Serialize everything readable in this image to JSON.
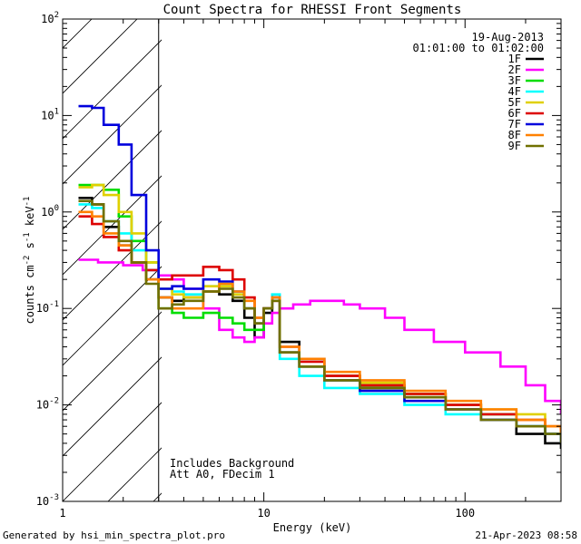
{
  "chart_data": {
    "type": "line",
    "title": "Count Spectra for RHESSI Front Segments",
    "xlabel": "Energy (keV)",
    "ylabel_parts": [
      "counts cm",
      "-2",
      " s",
      "-1",
      " keV",
      "-1"
    ],
    "x_scale": "log",
    "y_scale": "log",
    "xlim": [
      1,
      300
    ],
    "ylim": [
      0.001,
      100
    ],
    "x_ticks": [
      {
        "value": 1,
        "label": "1"
      },
      {
        "value": 10,
        "label": "10"
      },
      {
        "value": 100,
        "label": "100"
      }
    ],
    "y_ticks": [
      {
        "value": 0.001,
        "base": "10",
        "exp": "-3"
      },
      {
        "value": 0.01,
        "base": "10",
        "exp": "-2"
      },
      {
        "value": 0.1,
        "base": "10",
        "exp": "-1"
      },
      {
        "value": 1,
        "base": "10",
        "exp": "0"
      },
      {
        "value": 10,
        "base": "10",
        "exp": "1"
      },
      {
        "value": 100,
        "base": "10",
        "exp": "2"
      }
    ],
    "hatched_region_kev": [
      1,
      3
    ],
    "date": "19-Aug-2013",
    "time_range": "01:01:00 to 01:02:00",
    "annotations": [
      "Includes Background",
      "Att A0, FDecim 1"
    ],
    "series": [
      {
        "name": "1F",
        "color": "#000000",
        "x": [
          1.2,
          1.4,
          1.6,
          1.9,
          2.2,
          2.6,
          3.0,
          3.5,
          4.0,
          5.0,
          6.0,
          7.0,
          8.0,
          9.0,
          10.0,
          11.0,
          12.0,
          15.0,
          20.0,
          30.0,
          50.0,
          80.0,
          120.0,
          180.0,
          250.0,
          300.0
        ],
        "y": [
          1.4,
          1.2,
          0.7,
          0.45,
          0.3,
          0.2,
          0.13,
          0.12,
          0.13,
          0.15,
          0.14,
          0.12,
          0.08,
          0.05,
          0.09,
          0.13,
          0.045,
          0.03,
          0.02,
          0.015,
          0.012,
          0.009,
          0.007,
          0.005,
          0.004,
          0.0035
        ]
      },
      {
        "name": "2F",
        "color": "#ff00ff",
        "x": [
          1.2,
          1.5,
          2.0,
          2.5,
          3.0,
          3.5,
          4.0,
          5.0,
          6.0,
          7.0,
          8.0,
          9.0,
          10.0,
          11.0,
          12.0,
          14.0,
          17.0,
          20.0,
          25.0,
          30.0,
          40.0,
          50.0,
          70.0,
          100.0,
          150.0,
          200.0,
          250.0,
          300.0
        ],
        "y": [
          0.32,
          0.3,
          0.28,
          0.25,
          0.22,
          0.2,
          0.16,
          0.1,
          0.06,
          0.05,
          0.045,
          0.05,
          0.07,
          0.09,
          0.1,
          0.11,
          0.12,
          0.12,
          0.11,
          0.1,
          0.08,
          0.06,
          0.045,
          0.035,
          0.025,
          0.016,
          0.011,
          0.008
        ]
      },
      {
        "name": "3F",
        "color": "#00dd00",
        "x": [
          1.2,
          1.4,
          1.6,
          1.9,
          2.2,
          2.6,
          3.0,
          3.5,
          4.0,
          5.0,
          6.0,
          7.0,
          8.0,
          9.0,
          10.0,
          11.0,
          12.0,
          15.0,
          20.0,
          30.0,
          50.0,
          80.0,
          120.0,
          180.0,
          250.0,
          300.0
        ],
        "y": [
          1.9,
          1.9,
          1.7,
          0.9,
          0.5,
          0.3,
          0.1,
          0.09,
          0.08,
          0.09,
          0.08,
          0.07,
          0.06,
          0.06,
          0.1,
          0.13,
          0.035,
          0.025,
          0.018,
          0.016,
          0.013,
          0.01,
          0.008,
          0.006,
          0.005,
          0.004
        ]
      },
      {
        "name": "4F",
        "color": "#00ffff",
        "x": [
          1.2,
          1.4,
          1.6,
          1.9,
          2.2,
          2.6,
          3.0,
          3.5,
          4.0,
          5.0,
          6.0,
          7.0,
          8.0,
          9.0,
          10.0,
          11.0,
          12.0,
          15.0,
          20.0,
          30.0,
          50.0,
          80.0,
          120.0,
          180.0,
          250.0,
          300.0
        ],
        "y": [
          1.2,
          1.1,
          0.8,
          0.6,
          0.4,
          0.25,
          0.16,
          0.15,
          0.14,
          0.17,
          0.18,
          0.14,
          0.1,
          0.07,
          0.1,
          0.14,
          0.03,
          0.02,
          0.015,
          0.013,
          0.01,
          0.008,
          0.007,
          0.006,
          0.005,
          0.004
        ]
      },
      {
        "name": "5F",
        "color": "#e0d000",
        "x": [
          1.2,
          1.4,
          1.6,
          1.9,
          2.2,
          2.6,
          3.0,
          3.5,
          4.0,
          5.0,
          6.0,
          7.0,
          8.0,
          9.0,
          10.0,
          11.0,
          12.0,
          15.0,
          20.0,
          30.0,
          50.0,
          80.0,
          120.0,
          180.0,
          250.0,
          300.0
        ],
        "y": [
          1.8,
          1.9,
          1.5,
          1.0,
          0.6,
          0.3,
          0.16,
          0.14,
          0.13,
          0.17,
          0.17,
          0.14,
          0.1,
          0.07,
          0.1,
          0.13,
          0.035,
          0.025,
          0.02,
          0.017,
          0.013,
          0.01,
          0.009,
          0.008,
          0.006,
          0.005
        ]
      },
      {
        "name": "6F",
        "color": "#dd0000",
        "x": [
          1.2,
          1.4,
          1.6,
          1.9,
          2.2,
          2.6,
          3.0,
          3.5,
          4.0,
          5.0,
          6.0,
          7.0,
          8.0,
          9.0,
          10.0,
          11.0,
          12.0,
          15.0,
          20.0,
          30.0,
          50.0,
          80.0,
          120.0,
          180.0,
          250.0,
          300.0
        ],
        "y": [
          0.9,
          0.75,
          0.55,
          0.4,
          0.3,
          0.25,
          0.2,
          0.22,
          0.22,
          0.27,
          0.25,
          0.2,
          0.13,
          0.08,
          0.1,
          0.12,
          0.04,
          0.028,
          0.02,
          0.016,
          0.013,
          0.01,
          0.008,
          0.007,
          0.006,
          0.005
        ]
      },
      {
        "name": "7F",
        "color": "#0000dd",
        "x": [
          1.2,
          1.4,
          1.6,
          1.9,
          2.2,
          2.6,
          3.0,
          3.5,
          4.0,
          5.0,
          6.0,
          7.0,
          8.0,
          9.0,
          10.0,
          11.0,
          12.0,
          15.0,
          20.0,
          30.0,
          50.0,
          80.0,
          120.0,
          180.0,
          250.0,
          300.0
        ],
        "y": [
          12.5,
          12.0,
          8.0,
          5.0,
          1.5,
          0.4,
          0.16,
          0.17,
          0.16,
          0.2,
          0.19,
          0.15,
          0.1,
          0.07,
          0.1,
          0.13,
          0.035,
          0.025,
          0.018,
          0.014,
          0.011,
          0.009,
          0.007,
          0.006,
          0.005,
          0.004
        ]
      },
      {
        "name": "8F",
        "color": "#ff8000",
        "x": [
          1.2,
          1.4,
          1.6,
          1.9,
          2.2,
          2.6,
          3.0,
          3.5,
          4.0,
          5.0,
          6.0,
          7.0,
          8.0,
          9.0,
          10.0,
          11.0,
          12.0,
          15.0,
          20.0,
          30.0,
          50.0,
          80.0,
          120.0,
          180.0,
          250.0,
          300.0
        ],
        "y": [
          1.0,
          0.9,
          0.6,
          0.45,
          0.3,
          0.2,
          0.13,
          0.1,
          0.1,
          0.15,
          0.18,
          0.15,
          0.12,
          0.08,
          0.1,
          0.13,
          0.04,
          0.03,
          0.022,
          0.018,
          0.014,
          0.011,
          0.009,
          0.007,
          0.006,
          0.005
        ]
      },
      {
        "name": "9F",
        "color": "#707000",
        "x": [
          1.2,
          1.4,
          1.6,
          1.9,
          2.2,
          2.6,
          3.0,
          3.5,
          4.0,
          5.0,
          6.0,
          7.0,
          8.0,
          9.0,
          10.0,
          11.0,
          12.0,
          15.0,
          20.0,
          30.0,
          50.0,
          80.0,
          120.0,
          180.0,
          250.0,
          300.0
        ],
        "y": [
          1.3,
          1.2,
          0.8,
          0.5,
          0.3,
          0.18,
          0.1,
          0.11,
          0.12,
          0.15,
          0.16,
          0.13,
          0.1,
          0.07,
          0.1,
          0.12,
          0.035,
          0.025,
          0.018,
          0.015,
          0.012,
          0.009,
          0.007,
          0.006,
          0.005,
          0.004
        ]
      }
    ]
  },
  "footer": {
    "generated_by": "Generated by hsi_min_spectra_plot.pro",
    "timestamp": "21-Apr-2023 08:58"
  }
}
